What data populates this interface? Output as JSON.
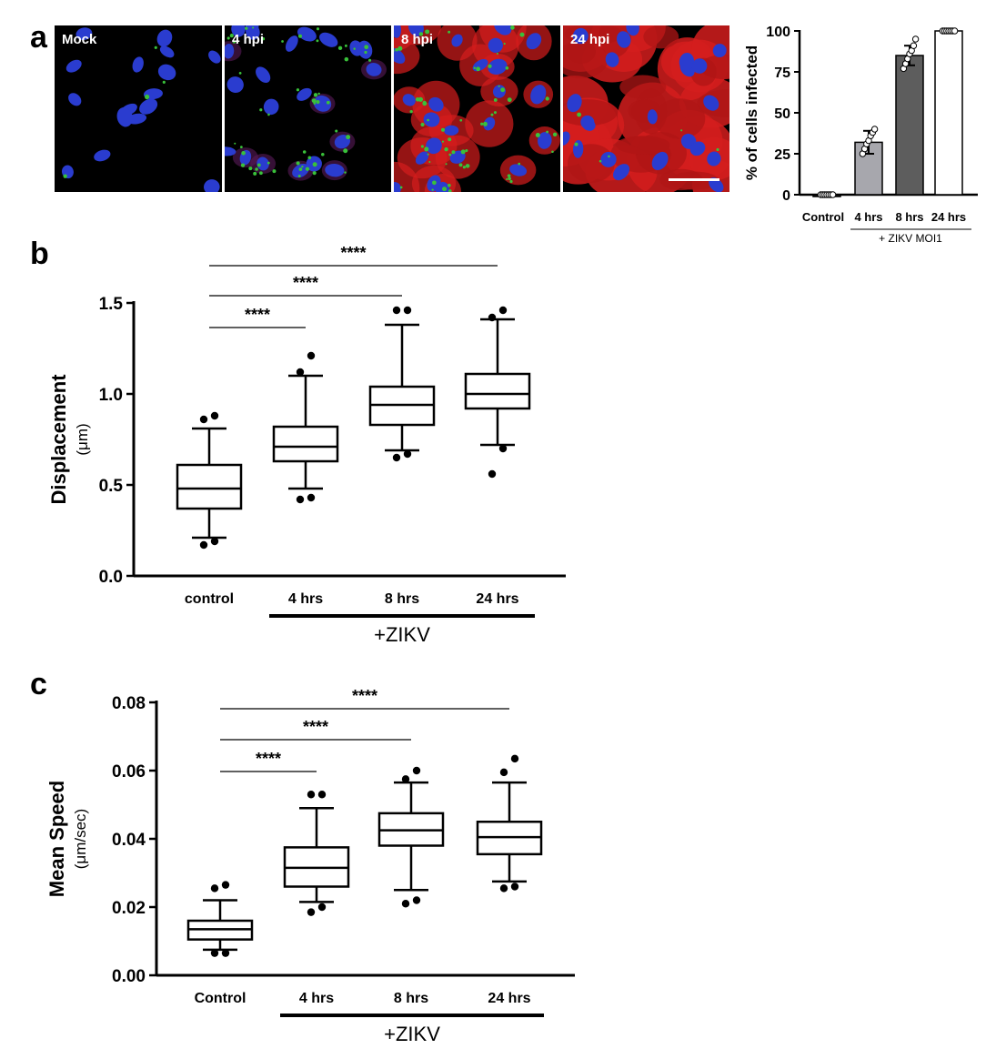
{
  "panels": {
    "a": "a",
    "b": "b",
    "c": "c"
  },
  "micrographs": [
    {
      "label": "Mock",
      "infection": "mock"
    },
    {
      "label": "4 hpi",
      "infection": "early"
    },
    {
      "label": "8 hpi",
      "infection": "mid"
    },
    {
      "label": "24 hpi",
      "infection": "late"
    }
  ],
  "colors": {
    "nucleus": "#2a3ccf",
    "cytoplasm": "#d41d1d",
    "puncta": "#39c13a",
    "bar_control": "#1a1a1a",
    "bar_4": "#a7a7ad",
    "bar_8": "#5d5d5d",
    "bar_24": "#ffffff"
  },
  "chart_data": [
    {
      "id": "percent-infected",
      "type": "bar",
      "ylabel": "% of cells infected",
      "ylim": [
        0,
        100
      ],
      "yticks": [
        "0",
        "25",
        "50",
        "75",
        "100"
      ],
      "categories": [
        "Control",
        "4 hrs",
        "8 hrs",
        "24 hrs"
      ],
      "group_label": "+ ZIKV MOI1",
      "values": [
        0,
        32,
        85,
        100
      ],
      "sd": [
        1,
        7,
        6,
        0.5
      ],
      "points": [
        [
          0,
          0,
          0,
          0,
          0,
          0,
          0
        ],
        [
          25,
          28,
          31,
          33,
          36,
          38,
          40
        ],
        [
          77,
          80,
          83,
          86,
          88,
          91,
          95
        ],
        [
          100,
          100,
          100,
          100,
          100,
          100,
          100
        ]
      ]
    },
    {
      "id": "displacement",
      "type": "boxplot",
      "ylabel": "Displacement",
      "yunit": "(μm)",
      "ylim": [
        0,
        1.5
      ],
      "yticks": [
        "0.0",
        "0.5",
        "1.0",
        "1.5"
      ],
      "categories": [
        "control",
        "4 hrs",
        "8 hrs",
        "24 hrs"
      ],
      "group_label": "+ZIKV",
      "boxes": [
        {
          "whisker_low": 0.21,
          "q1": 0.37,
          "median": 0.48,
          "q3": 0.61,
          "whisker_high": 0.81,
          "outliers": [
            0.17,
            0.19,
            0.86,
            0.88
          ]
        },
        {
          "whisker_low": 0.48,
          "q1": 0.63,
          "median": 0.71,
          "q3": 0.82,
          "whisker_high": 1.1,
          "outliers": [
            0.42,
            0.43,
            1.12,
            1.21
          ]
        },
        {
          "whisker_low": 0.69,
          "q1": 0.83,
          "median": 0.94,
          "q3": 1.04,
          "whisker_high": 1.38,
          "outliers": [
            0.65,
            0.67,
            1.46,
            1.46
          ]
        },
        {
          "whisker_low": 0.72,
          "q1": 0.92,
          "median": 1.0,
          "q3": 1.11,
          "whisker_high": 1.41,
          "outliers": [
            0.56,
            0.7,
            1.42,
            1.46
          ]
        }
      ],
      "significance": [
        {
          "from": 0,
          "to": 1,
          "label": "****"
        },
        {
          "from": 0,
          "to": 2,
          "label": "****"
        },
        {
          "from": 0,
          "to": 3,
          "label": "****"
        }
      ]
    },
    {
      "id": "mean-speed",
      "type": "boxplot",
      "ylabel": "Mean Speed",
      "yunit": "(μm/sec)",
      "ylim": [
        0,
        0.08
      ],
      "yticks": [
        "0.00",
        "0.02",
        "0.04",
        "0.06",
        "0.08"
      ],
      "categories": [
        "Control",
        "4 hrs",
        "8 hrs",
        "24 hrs"
      ],
      "group_label": "+ZIKV",
      "boxes": [
        {
          "whisker_low": 0.0075,
          "q1": 0.0105,
          "median": 0.0135,
          "q3": 0.016,
          "whisker_high": 0.022,
          "outliers": [
            0.0065,
            0.0065,
            0.0255,
            0.0265
          ]
        },
        {
          "whisker_low": 0.0215,
          "q1": 0.026,
          "median": 0.0315,
          "q3": 0.0375,
          "whisker_high": 0.049,
          "outliers": [
            0.0185,
            0.02,
            0.053,
            0.053
          ]
        },
        {
          "whisker_low": 0.025,
          "q1": 0.038,
          "median": 0.0425,
          "q3": 0.0475,
          "whisker_high": 0.0565,
          "outliers": [
            0.021,
            0.022,
            0.0575,
            0.06
          ]
        },
        {
          "whisker_low": 0.0275,
          "q1": 0.0355,
          "median": 0.0405,
          "q3": 0.045,
          "whisker_high": 0.0565,
          "outliers": [
            0.0255,
            0.026,
            0.0595,
            0.0635
          ]
        }
      ],
      "significance": [
        {
          "from": 0,
          "to": 1,
          "label": "****"
        },
        {
          "from": 0,
          "to": 2,
          "label": "****"
        },
        {
          "from": 0,
          "to": 3,
          "label": "****"
        }
      ]
    }
  ]
}
